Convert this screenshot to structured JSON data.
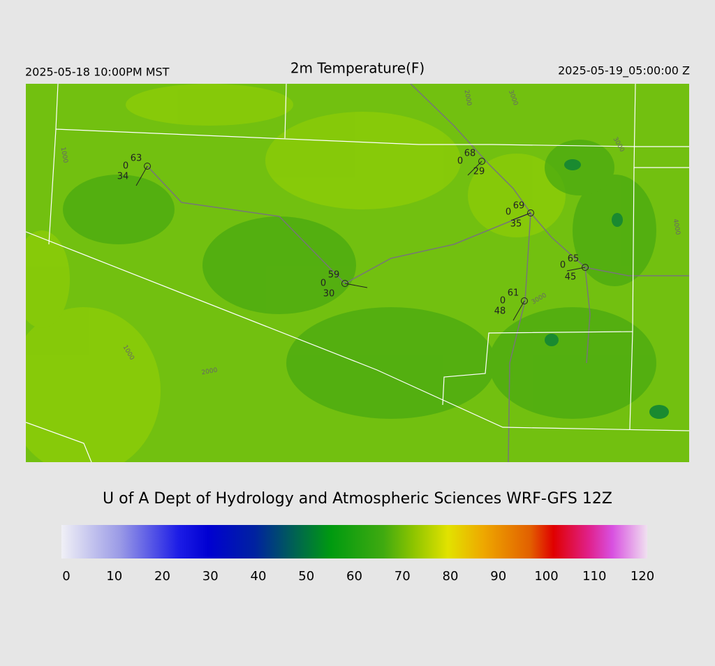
{
  "header": {
    "local_time": "2025-05-18 10:00PM MST",
    "title": "2m Temperature(F)",
    "utc_time": "2025-05-19_05:00:00 Z"
  },
  "stations": [
    {
      "temperature": 63,
      "wind": 0,
      "dewpoint": 34
    },
    {
      "temperature": 68,
      "wind": 0,
      "dewpoint": 29
    },
    {
      "temperature": 69,
      "wind": 0,
      "dewpoint": 35
    },
    {
      "temperature": 65,
      "wind": 0,
      "dewpoint": 45
    },
    {
      "temperature": 59,
      "wind": 0,
      "dewpoint": 30
    },
    {
      "temperature": 61,
      "wind": 0,
      "dewpoint": 48
    }
  ],
  "contour_labels": [
    "1000",
    "2000",
    "3000",
    "3000",
    "1000",
    "2000",
    "3000",
    "4000"
  ],
  "footer": "U of A Dept of Hydrology and Atmospheric Sciences WRF-GFS 12Z",
  "colorbar": {
    "range": [
      0,
      120
    ],
    "ticks": [
      0,
      10,
      20,
      30,
      40,
      50,
      60,
      70,
      80,
      90,
      100,
      110,
      120
    ]
  }
}
